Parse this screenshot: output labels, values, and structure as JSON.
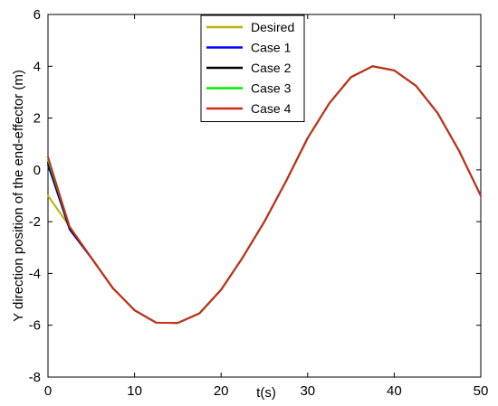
{
  "chart_data": {
    "type": "line",
    "title": "",
    "xlabel": "t(s)",
    "ylabel": "Y direction position of the end-effector (m)",
    "xlim": [
      0,
      50
    ],
    "ylim": [
      -8,
      6
    ],
    "xticks": [
      0,
      10,
      20,
      30,
      40,
      50
    ],
    "yticks": [
      -8,
      -6,
      -4,
      -2,
      0,
      2,
      4,
      6
    ],
    "grid": false,
    "legend_position": "top-center",
    "x": [
      0,
      2.5,
      5,
      7.5,
      10,
      12.5,
      15,
      17.5,
      20,
      22.5,
      25,
      27.5,
      30,
      32.5,
      35,
      37.5,
      40,
      42.5,
      45,
      47.5,
      50
    ],
    "series": [
      {
        "name": "Desired",
        "color": "#b5b500",
        "values": [
          -1.0,
          -2.19,
          -3.39,
          -4.57,
          -5.42,
          -5.9,
          -5.91,
          -5.54,
          -4.63,
          -3.38,
          -2.0,
          -0.44,
          1.23,
          2.57,
          3.58,
          4.0,
          3.84,
          3.25,
          2.2,
          0.73,
          -1.0
        ]
      },
      {
        "name": "Case 1",
        "color": "#0000ff",
        "values": [
          0.2,
          -2.3,
          -3.4,
          -4.57,
          -5.42,
          -5.9,
          -5.91,
          -5.54,
          -4.63,
          -3.38,
          -2.0,
          -0.44,
          1.23,
          2.57,
          3.58,
          4.0,
          3.84,
          3.25,
          2.2,
          0.73,
          -1.0
        ]
      },
      {
        "name": "Case 2",
        "color": "#000000",
        "values": [
          0.3,
          -2.25,
          -3.39,
          -4.57,
          -5.42,
          -5.9,
          -5.91,
          -5.54,
          -4.63,
          -3.38,
          -2.0,
          -0.44,
          1.23,
          2.57,
          3.58,
          4.0,
          3.84,
          3.25,
          2.2,
          0.73,
          -1.0
        ]
      },
      {
        "name": "Case 3",
        "color": "#00ee00",
        "values": [
          0.4,
          -2.2,
          -3.39,
          -4.57,
          -5.42,
          -5.9,
          -5.91,
          -5.54,
          -4.63,
          -3.38,
          -2.0,
          -0.44,
          1.23,
          2.57,
          3.58,
          4.0,
          3.84,
          3.25,
          2.2,
          0.73,
          -1.0
        ]
      },
      {
        "name": "Case 4",
        "color": "#d12a1a",
        "values": [
          0.5,
          -2.2,
          -3.39,
          -4.57,
          -5.42,
          -5.9,
          -5.91,
          -5.54,
          -4.63,
          -3.38,
          -2.0,
          -0.44,
          1.23,
          2.57,
          3.58,
          4.0,
          3.84,
          3.25,
          2.2,
          0.73,
          -1.0
        ]
      }
    ]
  }
}
